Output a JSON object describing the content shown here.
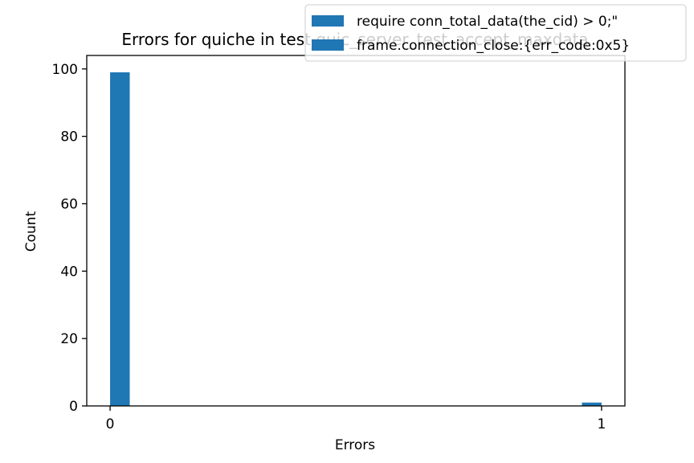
{
  "chart_data": {
    "type": "bar",
    "title": "Errors for quiche in test quic_server_test_accept_maxdata",
    "xlabel": "Errors",
    "ylabel": "Count",
    "xlim": [
      -0.0475,
      1.0475
    ],
    "ylim": [
      0,
      104
    ],
    "x_ticks": [
      0,
      1
    ],
    "y_ticks": [
      0,
      20,
      40,
      60,
      80,
      100
    ],
    "bin_width": 0.04,
    "bars": [
      {
        "x": 0.0,
        "value": 99
      },
      {
        "x": 0.96,
        "value": 1
      }
    ],
    "legend_position": "upper right",
    "legend": [
      {
        "label": "require conn_total_data(the_cid) > 0;\"",
        "color": "#1f77b4"
      },
      {
        "label": "frame.connection_close:{err_code:0x5}",
        "color": "#1f77b4"
      }
    ],
    "bar_color": "#1f77b4",
    "grid": false
  }
}
